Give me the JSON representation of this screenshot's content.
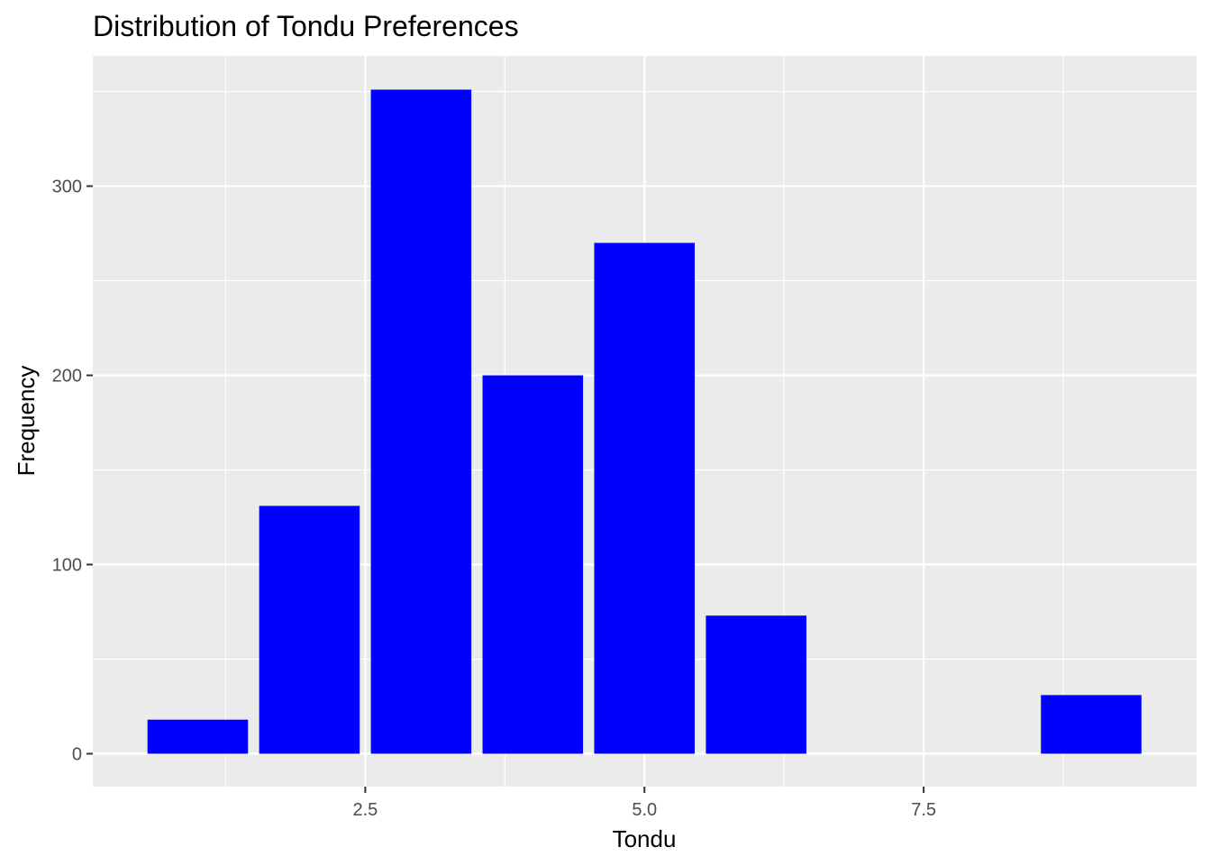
{
  "chart_data": {
    "type": "bar",
    "title": "Distribution of Tondu Preferences",
    "xlabel": "Tondu",
    "ylabel": "Frequency",
    "x": [
      1,
      2,
      3,
      4,
      5,
      6,
      9
    ],
    "values": [
      18,
      131,
      351,
      200,
      270,
      73,
      31
    ],
    "xlim": [
      0.5,
      9.5
    ],
    "ylim": [
      0,
      351
    ],
    "x_ticks": [
      2.5,
      5.0,
      7.5
    ],
    "x_tick_labels": [
      "2.5",
      "5.0",
      "7.5"
    ],
    "y_ticks": [
      0,
      100,
      200,
      300
    ],
    "y_tick_labels": [
      "0",
      "100",
      "200",
      "300"
    ],
    "bar_color": "#0000ff",
    "panel_background": "#ebebeb",
    "grid": true,
    "grid_color": "#ffffff",
    "legend": "none"
  }
}
